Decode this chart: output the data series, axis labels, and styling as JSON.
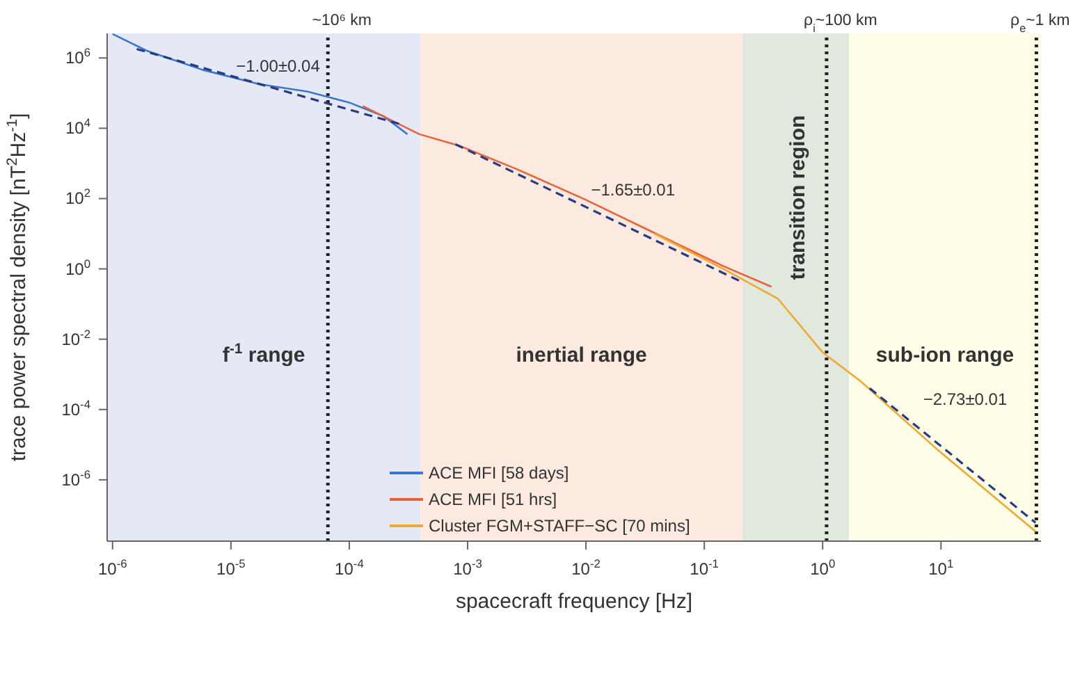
{
  "chart_data": {
    "type": "line",
    "xlabel": "spacecraft frequency [Hz]",
    "ylabel": "trace power spectral density [nT$^{2}$Hz$^{-1}$]",
    "log": "xy",
    "xlim": [
      9e-07,
      70
    ],
    "ylim": [
      1.8e-08,
      5000000.0
    ],
    "xticks": [
      {
        "value": 1e-06,
        "label": "10$^{-6}$"
      },
      {
        "value": 1e-05,
        "label": "10$^{-5}$"
      },
      {
        "value": 0.0001,
        "label": "10$^{-4}$"
      },
      {
        "value": 0.001,
        "label": "10$^{-3}$"
      },
      {
        "value": 0.01,
        "label": "10$^{-2}$"
      },
      {
        "value": 0.1,
        "label": "10$^{-1}$"
      },
      {
        "value": 1,
        "label": "10$^{0}$"
      },
      {
        "value": 10,
        "label": "10$^{1}$"
      }
    ],
    "yticks": [
      {
        "value": 1e-06,
        "label": "10$^{-6}$"
      },
      {
        "value": 0.0001,
        "label": "10$^{-4}$"
      },
      {
        "value": 0.01,
        "label": "10$^{-2}$"
      },
      {
        "value": 1,
        "label": "10$^{0}$"
      },
      {
        "value": 100,
        "label": "10$^{2}$"
      },
      {
        "value": 10000.0,
        "label": "10$^{4}$"
      },
      {
        "value": 1000000.0,
        "label": "10$^{6}$"
      }
    ],
    "grid": false,
    "legend": "bottom",
    "marker": "none",
    "series": [
      {
        "name": "ACE MFI [58 days]",
        "color": "#3a78d0",
        "x": [
          1e-06,
          1.95e-06,
          5.75e-06,
          1.74e-05,
          4.47e-05,
          0.0001,
          0.000195,
          0.00031
        ],
        "values": [
          4800000.0,
          1600000.0,
          460000.0,
          180000.0,
          110000.0,
          54000.0,
          22000.0,
          6800.0
        ]
      },
      {
        "name": "ACE MFI [51 hrs]",
        "color": "#e8623a",
        "x": [
          0.00013,
          0.00039,
          0.00087,
          0.0026,
          0.0098,
          0.038,
          0.145,
          0.37
        ],
        "values": [
          43000.0,
          6800.0,
          3100.0,
          690,
          95,
          10.5,
          1.2,
          0.31
        ]
      },
      {
        "name": "Cluster FGM+STAFF−SC [70 mins]",
        "color": "#f0a830",
        "x": [
          0.038,
          0.145,
          0.42,
          1,
          2.1,
          10,
          63
        ],
        "values": [
          10,
          1,
          0.14,
          0.0042,
          0.00063,
          5.9e-06,
          3.4e-08
        ]
      },
      {
        "color": "#2a3a80",
        "line_style": "dashed",
        "x": [
          1.6e-06,
          0.00028
        ],
        "values": [
          1800000.0,
          12600.0
        ]
      },
      {
        "color": "#2a3a80",
        "line_style": "dashed",
        "x": [
          0.00079,
          0.2
        ],
        "values": [
          3500.0,
          0.45
        ]
      },
      {
        "color": "#2a3a80",
        "line_style": "dashed",
        "x": [
          2.5,
          63
        ],
        "values": [
          0.0004,
          6e-08
        ]
      }
    ],
    "bands": [
      {
        "axis": "x",
        "from": 9e-07,
        "to": 0.0004,
        "label": "f$^{-1}$ range",
        "color": "#e5e9f5"
      },
      {
        "axis": "x",
        "from": 0.0004,
        "to": 0.21,
        "label": "inertial range",
        "color": "#fce9df"
      },
      {
        "axis": "x",
        "from": 0.21,
        "to": 1.67,
        "label": "transition region",
        "color": "#e1e8dd"
      },
      {
        "axis": "x",
        "from": 1.67,
        "to": 70,
        "label": "sub-ion range",
        "color": "#fefde8"
      }
    ],
    "ref_lines": [
      {
        "axis": "x",
        "value": 6.6e-05,
        "label": "~10⁶ km",
        "color": "#222222",
        "line_style": "dotted"
      },
      {
        "axis": "x",
        "value": 1.08,
        "label": "ρ$_{i}$~100 km",
        "color": "#222222",
        "line_style": "dotted"
      },
      {
        "axis": "x",
        "value": 64,
        "label": "ρ$_{e}$~1 km",
        "color": "#222222",
        "line_style": "dotted"
      }
    ],
    "annotations": [
      "−1.00±0.04",
      "−1.65±0.01",
      "−2.73±0.01"
    ]
  }
}
